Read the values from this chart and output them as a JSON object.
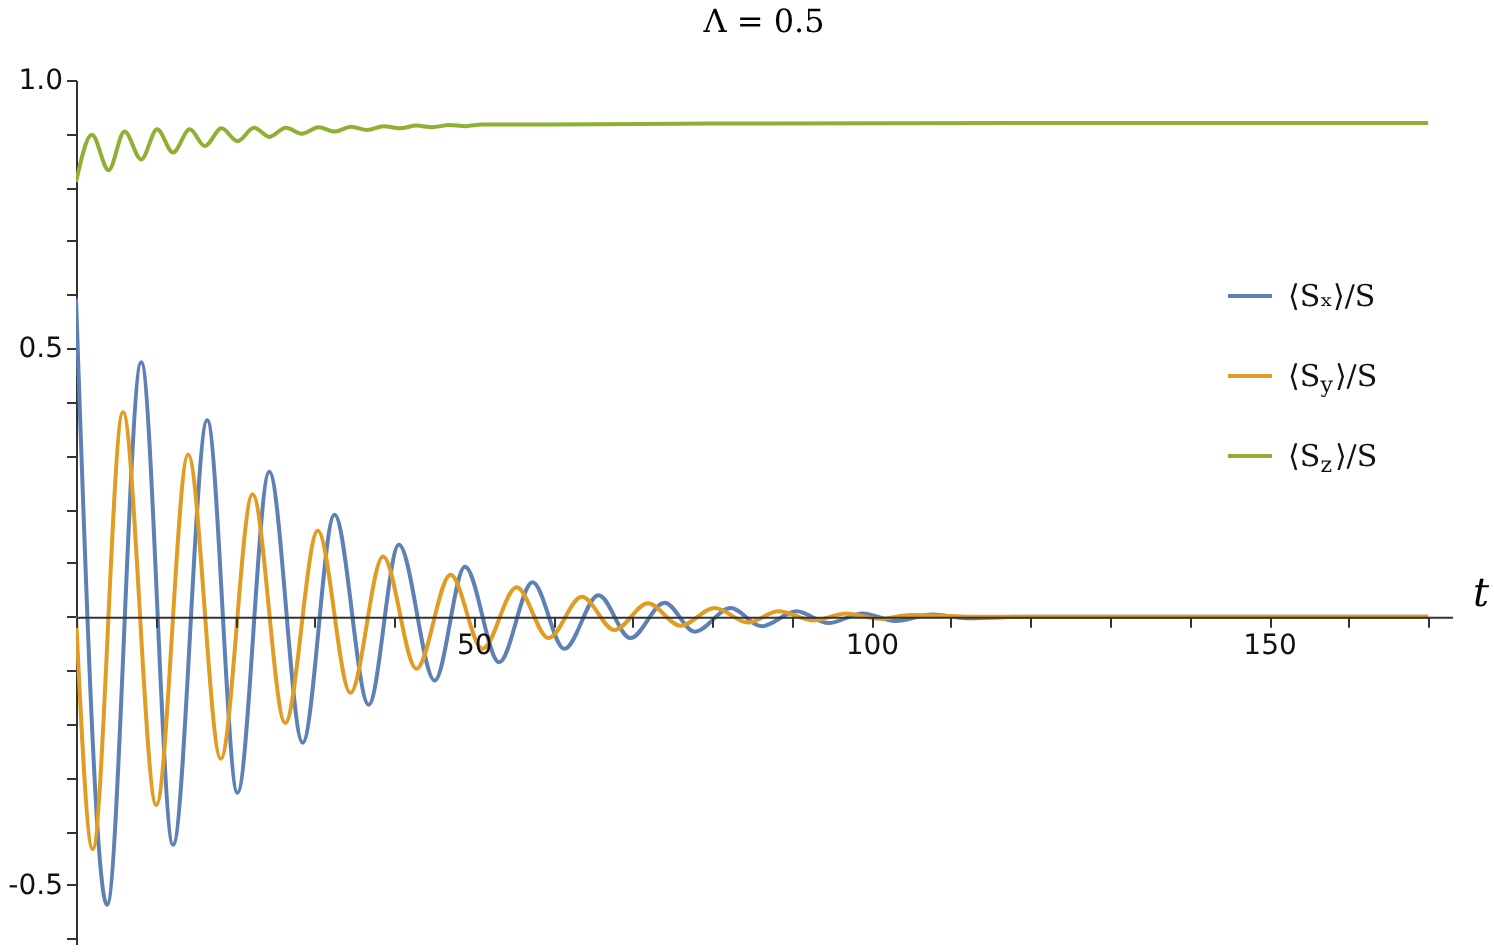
{
  "chart_data": {
    "type": "line",
    "title": "Λ = 0.5",
    "xlabel": "t",
    "xlim": [
      0,
      173
    ],
    "ylim": [
      -0.61,
      1.0
    ],
    "xticks": [
      {
        "value": 0,
        "label": null
      },
      {
        "value": 10,
        "label": null
      },
      {
        "value": 20,
        "label": null
      },
      {
        "value": 30,
        "label": null
      },
      {
        "value": 40,
        "label": null
      },
      50,
      {
        "value": 60,
        "label": null
      },
      {
        "value": 70,
        "label": null
      },
      {
        "value": 80,
        "label": null
      },
      {
        "value": 90,
        "label": null
      },
      100,
      {
        "value": 110,
        "label": null
      },
      {
        "value": 120,
        "label": null
      },
      {
        "value": 130,
        "label": null
      },
      {
        "value": 140,
        "label": null
      },
      150,
      {
        "value": 160,
        "label": null
      },
      {
        "value": 170,
        "label": null
      }
    ],
    "yticks": [
      {
        "value": -0.6,
        "label": null
      },
      -0.5,
      {
        "value": -0.4,
        "label": null
      },
      {
        "value": -0.3,
        "label": null
      },
      {
        "value": -0.2,
        "label": null
      },
      {
        "value": -0.1,
        "label": null
      },
      {
        "value": 0,
        "label": null
      },
      {
        "value": 0.1,
        "label": null
      },
      {
        "value": 0.2,
        "label": null
      },
      {
        "value": 0.3,
        "label": null
      },
      {
        "value": 0.4,
        "label": null
      },
      0.5,
      {
        "value": 0.6,
        "label": null
      },
      {
        "value": 0.7,
        "label": null
      },
      {
        "value": 0.8,
        "label": null
      },
      {
        "value": 0.9,
        "label": null
      },
      {
        "value": 1.0,
        "label": "1.0"
      }
    ],
    "grid": false,
    "legend": "right",
    "line_style": "solid",
    "series": [
      {
        "name": "⟨Sₓ⟩/S",
        "color": "#5e81b5",
        "x": [
          0,
          3.9,
          8.2,
          12.2,
          16.5,
          20.3,
          24.3,
          28.5,
          32.5,
          36.8,
          40.6,
          45.1,
          48.9,
          53.2,
          57.4,
          61.4,
          65.7,
          69.7,
          74,
          77.8,
          82.3,
          86.2,
          90.6,
          94.6,
          98.9,
          103,
          107.7,
          112,
          120,
          140,
          170
        ],
        "values": [
          0.593,
          -0.537,
          0.474,
          -0.425,
          0.366,
          -0.328,
          0.27,
          -0.235,
          0.19,
          -0.164,
          0.134,
          -0.119,
          0.093,
          -0.085,
          0.064,
          -0.06,
          0.04,
          -0.04,
          0.026,
          -0.028,
          0.016,
          -0.018,
          0.01,
          -0.012,
          0.006,
          -0.008,
          0.004,
          -0.003,
          0,
          0,
          0
        ]
      },
      {
        "name": "⟨S$_{y}$⟩/S",
        "color": "#e19c24",
        "x": [
          0,
          2.1,
          5.9,
          10.1,
          14.1,
          18.2,
          22.2,
          26.3,
          30.4,
          34.5,
          38.6,
          42.8,
          47.1,
          51.1,
          55.4,
          59.4,
          63.6,
          67.7,
          71.9,
          76,
          80.3,
          84.5,
          88.3,
          92.8,
          96.8,
          101,
          105,
          112,
          140,
          170
        ],
        "values": [
          0,
          -0.433,
          0.381,
          -0.351,
          0.302,
          -0.265,
          0.228,
          -0.198,
          0.16,
          -0.142,
          0.112,
          -0.097,
          0.078,
          -0.06,
          0.055,
          -0.04,
          0.037,
          -0.025,
          0.025,
          -0.017,
          0.016,
          -0.011,
          0.01,
          -0.007,
          0.006,
          -0.004,
          0.003,
          0,
          0,
          0
        ]
      },
      {
        "name": "⟨S$_{z}$⟩/S",
        "color": "#8fb032",
        "x": [
          0,
          2.0,
          4.1,
          6.1,
          8.2,
          10.2,
          12.2,
          14.3,
          16.2,
          18.3,
          20.3,
          22.4,
          24.3,
          26.4,
          28.4,
          30.5,
          32.5,
          34.6,
          36.6,
          38.7,
          40.7,
          42.8,
          44.8,
          46.9,
          49,
          51,
          60,
          80,
          120,
          170
        ],
        "values": [
          0.81,
          0.898,
          0.832,
          0.904,
          0.852,
          0.908,
          0.865,
          0.908,
          0.877,
          0.91,
          0.886,
          0.911,
          0.894,
          0.911,
          0.9,
          0.912,
          0.904,
          0.913,
          0.907,
          0.914,
          0.91,
          0.915,
          0.912,
          0.916,
          0.914,
          0.917,
          0.917,
          0.919,
          0.92,
          0.92
        ]
      }
    ]
  }
}
